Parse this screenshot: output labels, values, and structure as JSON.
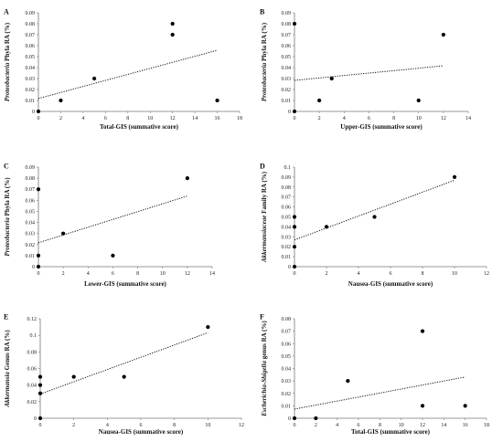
{
  "chart_data": [
    {
      "panel": "A",
      "type": "scatter",
      "xlabel": "Total-GIS (summative score)",
      "ylabel_italic": "Proteobacteria",
      "ylabel_rest": " Phyla RA (%)",
      "xlim": [
        0,
        18
      ],
      "ylim": [
        0,
        0.09
      ],
      "xticks": [
        0,
        2,
        4,
        6,
        8,
        10,
        12,
        14,
        16,
        18
      ],
      "yticks": [
        "0",
        "0.01",
        "0.02",
        "0.03",
        "0.04",
        "0.05",
        "0.06",
        "0.07",
        "0.08",
        "0.09"
      ],
      "points": [
        [
          0,
          0
        ],
        [
          2,
          0.01
        ],
        [
          5,
          0.03
        ],
        [
          12,
          0.08
        ],
        [
          12,
          0.07
        ],
        [
          16,
          0.01
        ]
      ],
      "trendline": true
    },
    {
      "panel": "B",
      "type": "scatter",
      "xlabel": "Upper-GIS (summative score)",
      "ylabel_italic": "Proteobacteria",
      "ylabel_rest": " Phyla RA (%)",
      "xlim": [
        0,
        14
      ],
      "ylim": [
        0,
        0.09
      ],
      "xticks": [
        0,
        2,
        4,
        6,
        8,
        10,
        12,
        14
      ],
      "yticks": [
        "0",
        "0.01",
        "0.02",
        "0.03",
        "0.04",
        "0.05",
        "0.06",
        "0.07",
        "0.08",
        "0.09"
      ],
      "points": [
        [
          0,
          0.08
        ],
        [
          0,
          0
        ],
        [
          2,
          0.01
        ],
        [
          3,
          0.03
        ],
        [
          10,
          0.01
        ],
        [
          12,
          0.07
        ]
      ],
      "trendline": true
    },
    {
      "panel": "C",
      "type": "scatter",
      "xlabel": "Lower-GIS (summative score)",
      "ylabel_italic": "Proteobacteria",
      "ylabel_rest": " Phyla RA (%)",
      "xlim": [
        0,
        14
      ],
      "ylim": [
        0,
        0.09
      ],
      "xticks": [
        0,
        2,
        4,
        6,
        8,
        10,
        12,
        14
      ],
      "yticks": [
        "0",
        "0.01",
        "0.02",
        "0.03",
        "0.04",
        "0.05",
        "0.06",
        "0.07",
        "0.08",
        "0.09"
      ],
      "points": [
        [
          0,
          0.07
        ],
        [
          0,
          0.01
        ],
        [
          0,
          0
        ],
        [
          2,
          0.03
        ],
        [
          6,
          0.01
        ],
        [
          12,
          0.08
        ]
      ],
      "trendline": true
    },
    {
      "panel": "D",
      "type": "scatter",
      "xlabel": "Nausea-GIS (summative score)",
      "ylabel_italic": "Akkermansiaceae",
      "ylabel_rest": " Family RA (%)",
      "xlim": [
        0,
        12
      ],
      "ylim": [
        0,
        0.1
      ],
      "xticks": [
        0,
        2,
        4,
        6,
        8,
        10,
        12
      ],
      "yticks": [
        "0",
        "0.01",
        "0.02",
        "0.03",
        "0.04",
        "0.05",
        "0.06",
        "0.07",
        "0.08",
        "0.09",
        "0.1"
      ],
      "points": [
        [
          0,
          0.05
        ],
        [
          0,
          0.04
        ],
        [
          0,
          0.02
        ],
        [
          0,
          0
        ],
        [
          2,
          0.04
        ],
        [
          5,
          0.05
        ],
        [
          10,
          0.09
        ]
      ],
      "trendline": true
    },
    {
      "panel": "E",
      "type": "scatter",
      "xlabel": "Nausea-GIS (summative score)",
      "ylabel_italic": "Akkermansia",
      "ylabel_rest": " Genus RA (%)",
      "xlim": [
        0,
        12
      ],
      "ylim": [
        0,
        0.12
      ],
      "xticks": [
        0,
        2,
        4,
        6,
        8,
        10,
        12
      ],
      "yticks": [
        "0",
        "0.02",
        "0.04",
        "0.06",
        "0.08",
        "0.1",
        "0.12"
      ],
      "points": [
        [
          0,
          0.05
        ],
        [
          0,
          0.04
        ],
        [
          0,
          0.03
        ],
        [
          0,
          0
        ],
        [
          2,
          0.05
        ],
        [
          5,
          0.05
        ],
        [
          10,
          0.11
        ]
      ],
      "trendline": true
    },
    {
      "panel": "F",
      "type": "scatter",
      "xlabel": "Total-GIS (summative score)",
      "ylabel_italic": "Escherichia-Shigella",
      "ylabel_rest": " genus RA (%)",
      "xlim": [
        0,
        18
      ],
      "ylim": [
        0,
        0.08
      ],
      "xticks": [
        0,
        2,
        4,
        6,
        8,
        10,
        12,
        14,
        16,
        18
      ],
      "yticks": [
        "0",
        "0.01",
        "0.02",
        "0.03",
        "0.04",
        "0.05",
        "0.06",
        "0.07",
        "0.08"
      ],
      "points": [
        [
          0,
          0
        ],
        [
          2,
          0
        ],
        [
          5,
          0.03
        ],
        [
          12,
          0.07
        ],
        [
          12,
          0.01
        ],
        [
          16,
          0.01
        ]
      ],
      "trendline": true
    }
  ]
}
